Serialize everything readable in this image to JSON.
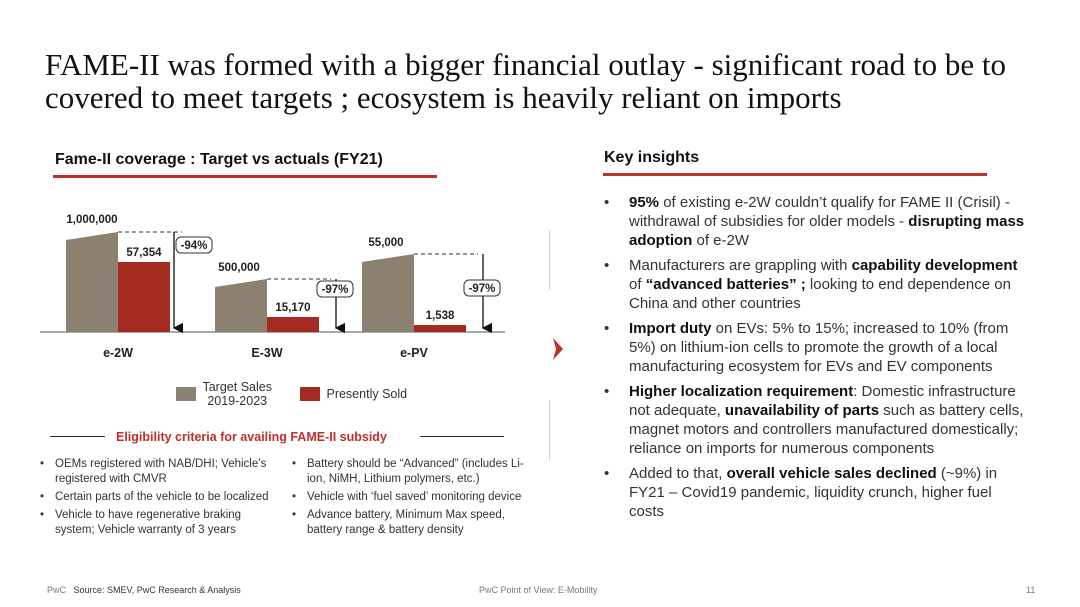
{
  "title": "FAME-II was formed with a bigger financial outlay - significant road to be to covered to meet targets ; ecosystem is heavily reliant on imports",
  "colors": {
    "accent": "#c0302a",
    "target_bar": "#8c8170",
    "sold_bar": "#a52a22"
  },
  "chart_section_title": "Fame-II coverage : Target vs actuals (FY21)",
  "insights_title": "Key insights",
  "chart_data": {
    "type": "bar",
    "categories": [
      "e-2W",
      "E-3W",
      "e-PV"
    ],
    "series": [
      {
        "name": "Target Sales 2019-2023",
        "values": [
          1000000,
          500000,
          55000
        ],
        "labels": [
          "1,000,000",
          "500,000",
          "55,000"
        ]
      },
      {
        "name": "Presently Sold",
        "values": [
          57354,
          15170,
          1538
        ],
        "labels": [
          "57,354",
          "15,170",
          "1,538"
        ]
      }
    ],
    "change_labels": [
      "-94%",
      "-97%",
      "-97%"
    ],
    "scale": "broken (segmented per category)",
    "legend_position": "bottom"
  },
  "legend": {
    "target_line1": "Target Sales",
    "target_line2": "2019-2023",
    "sold": "Presently Sold"
  },
  "eligibility": {
    "title": "Eligibility criteria for availing FAME-II subsidy",
    "left": [
      "OEMs registered with NAB/DHI; Vehicle’s registered with CMVR",
      "Certain parts of the vehicle to be localized",
      "Vehicle to have regenerative braking system; Vehicle warranty of 3 years"
    ],
    "right": [
      "Battery should be “Advanced” (includes Li-ion, NiMH, Lithium polymers, etc.)",
      "Vehicle with ‘fuel saved’ monitoring device",
      "Advance battery, Minimum Max speed, battery range & battery density"
    ]
  },
  "insights": [
    [
      {
        "b": true,
        "t": "95%"
      },
      {
        "b": false,
        "t": " of existing e-2W couldn’t qualify for FAME II (Crisil) - withdrawal of subsidies for older models - "
      },
      {
        "b": true,
        "t": "disrupting mass adoption"
      },
      {
        "b": false,
        "t": " of e-2W"
      }
    ],
    [
      {
        "b": false,
        "t": "Manufacturers are grappling with "
      },
      {
        "b": true,
        "t": "capability development"
      },
      {
        "b": false,
        "t": " of "
      },
      {
        "b": true,
        "t": "“advanced batteries” ;"
      },
      {
        "b": false,
        "t": " looking to end dependence on China and other countries"
      }
    ],
    [
      {
        "b": true,
        "t": "Import duty"
      },
      {
        "b": false,
        "t": " on EVs: 5% to 15%; increased to 10% (from 5%) on lithium-ion cells to promote the growth of a local manufacturing ecosystem for EVs and EV components"
      }
    ],
    [
      {
        "b": true,
        "t": "Higher localization requirement"
      },
      {
        "b": false,
        "t": ": Domestic infrastructure not adequate, "
      },
      {
        "b": true,
        "t": "unavailability of parts"
      },
      {
        "b": false,
        "t": " such as battery cells, magnet motors and controllers manufactured domestically; reliance on imports for numerous components"
      }
    ],
    [
      {
        "b": false,
        "t": "Added to that, "
      },
      {
        "b": true,
        "t": "overall vehicle sales declined"
      },
      {
        "b": false,
        "t": " (~9%) in FY21 – Covid19 pandemic, liquidity crunch, higher fuel costs"
      }
    ]
  ],
  "footer": {
    "brand": "PwC",
    "source": "Source: SMEV, PwC Research & Analysis",
    "center": "PwC Point of View: E-Mobility",
    "page": "11"
  }
}
